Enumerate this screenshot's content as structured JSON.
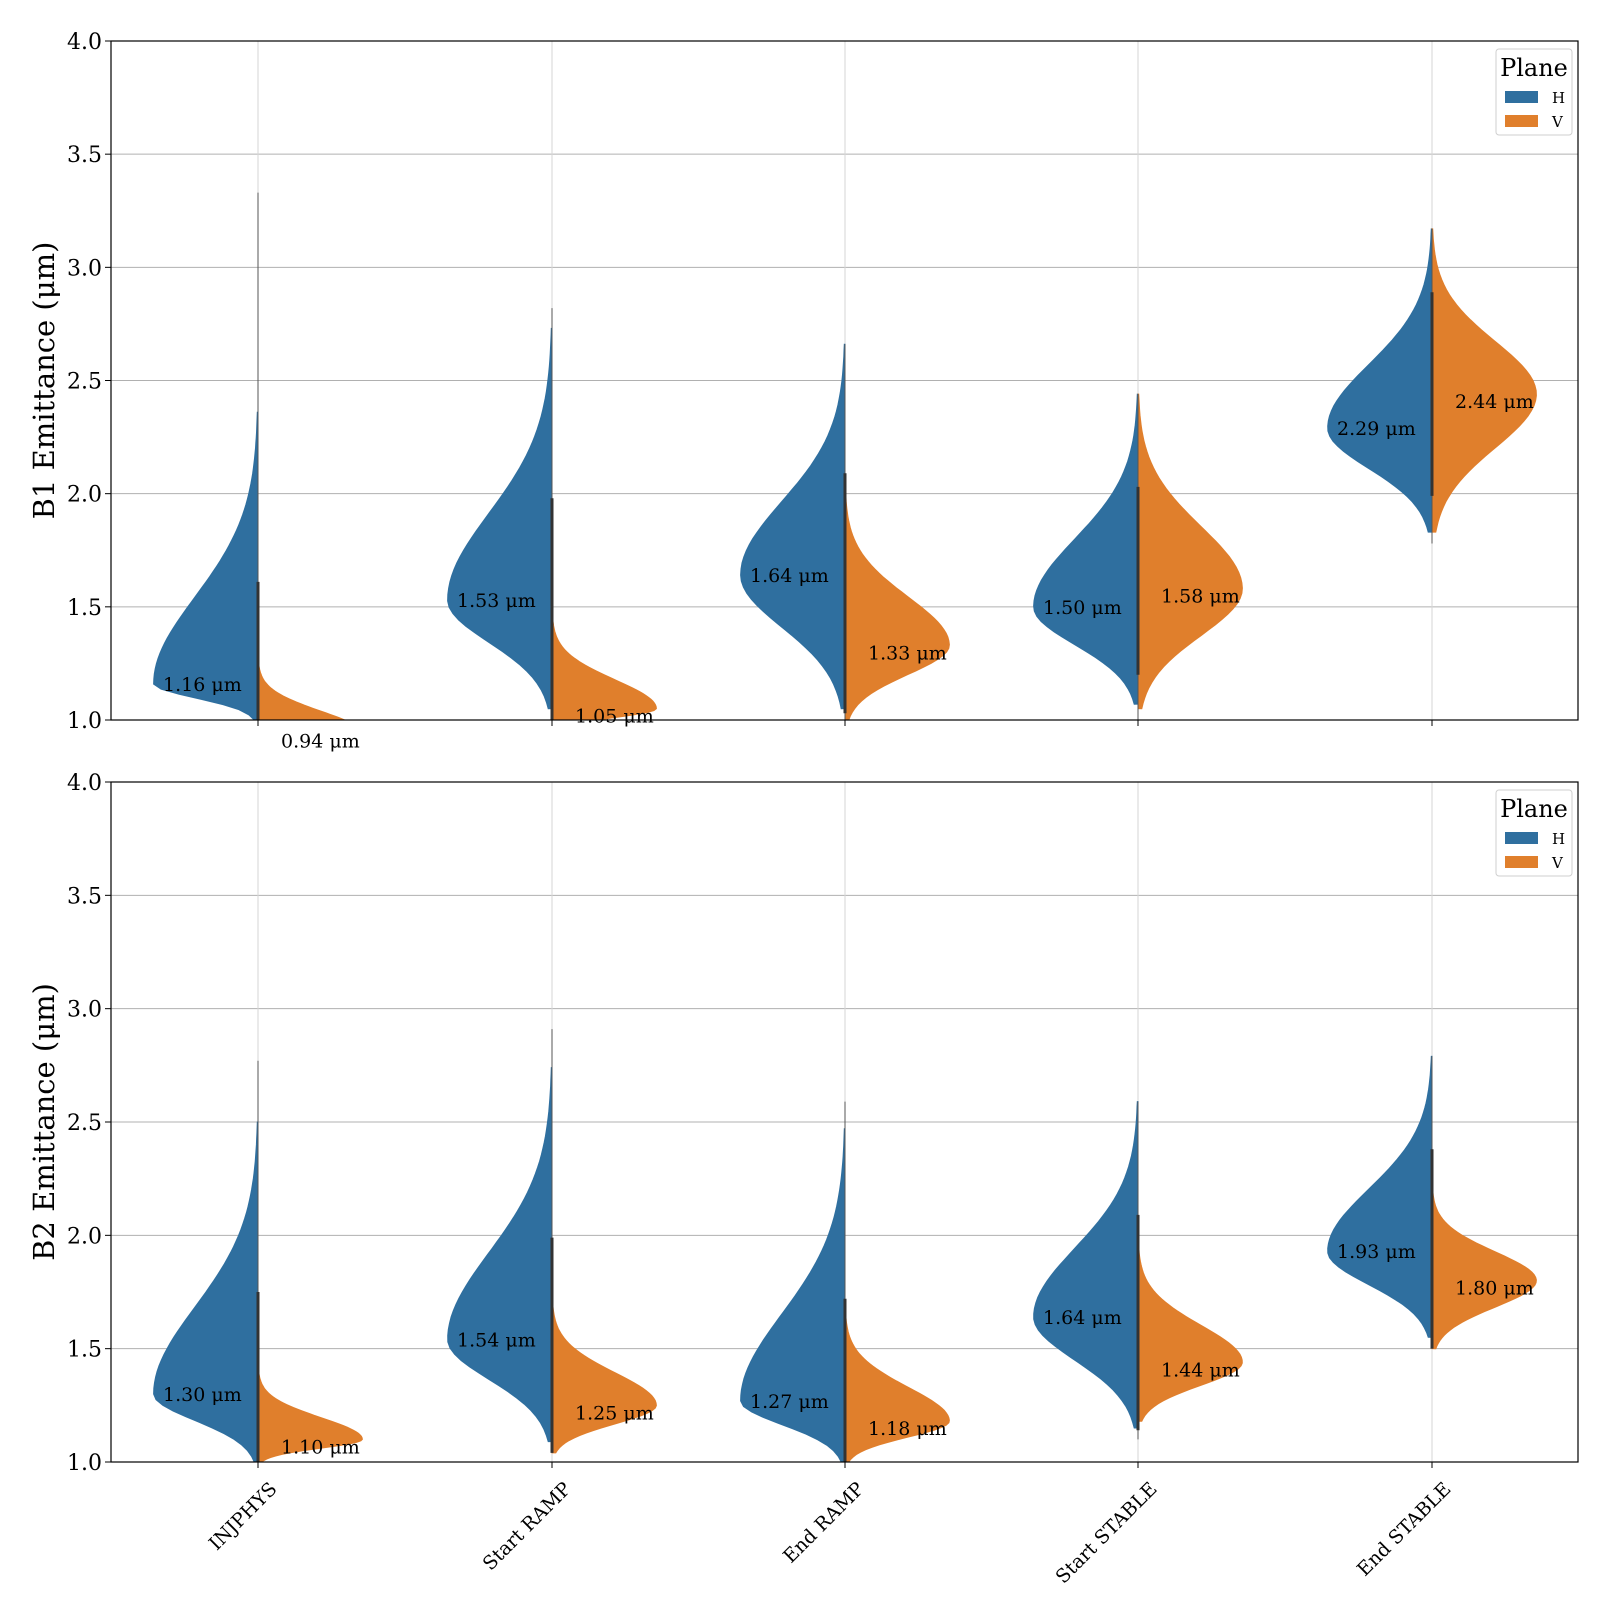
{
  "chart_data": {
    "type": "violin",
    "split": true,
    "categories": [
      "INJPHYS",
      "Start RAMP",
      "End RAMP",
      "Start STABLE",
      "End STABLE"
    ],
    "ylim": [
      1.0,
      4.0
    ],
    "yticks": [
      "1.0",
      "1.5",
      "2.0",
      "2.5",
      "3.0",
      "3.5",
      "4.0"
    ],
    "grid": true,
    "unit_suffix": "μm",
    "legend": {
      "title": "Plane",
      "placement": "top-right",
      "entries": [
        {
          "label": "H",
          "color": "#2f6f9f"
        },
        {
          "label": "V",
          "color": "#e07f2c"
        }
      ]
    },
    "panels": [
      {
        "ylabel": "B1 Emittance (μm)",
        "series": [
          {
            "name": "H",
            "color": "#2f6f9f",
            "medians": [
              1.16,
              1.53,
              1.64,
              1.5,
              2.29
            ],
            "labels": [
              "1.16 μm",
              "1.53 μm",
              "1.64 μm",
              "1.50 μm",
              "2.29 μm"
            ],
            "ranges": [
              [
                1.0,
                3.33
              ],
              [
                1.0,
                2.82
              ],
              [
                1.0,
                2.66
              ],
              [
                1.02,
                2.44
              ],
              [
                1.78,
                3.17
              ]
            ]
          },
          {
            "name": "V",
            "color": "#e07f2c",
            "medians": [
              0.94,
              1.05,
              1.33,
              1.58,
              2.44
            ],
            "labels": [
              "0.94 μm",
              "1.05 μm",
              "1.33 μm",
              "1.58 μm",
              "2.44 μm"
            ],
            "ranges": [
              [
                1.0,
                1.25
              ],
              [
                1.0,
                1.45
              ],
              [
                1.0,
                2.0
              ],
              [
                1.0,
                2.44
              ],
              [
                1.78,
                3.17
              ]
            ]
          }
        ]
      },
      {
        "ylabel": "B2 Emittance (μm)",
        "series": [
          {
            "name": "H",
            "color": "#2f6f9f",
            "medians": [
              1.3,
              1.54,
              1.27,
              1.64,
              1.93
            ],
            "labels": [
              "1.30 μm",
              "1.54 μm",
              "1.27 μm",
              "1.64 μm",
              "1.93 μm"
            ],
            "ranges": [
              [
                1.0,
                2.77
              ],
              [
                1.04,
                2.91
              ],
              [
                1.0,
                2.59
              ],
              [
                1.1,
                2.59
              ],
              [
                1.5,
                2.79
              ]
            ]
          },
          {
            "name": "V",
            "color": "#e07f2c",
            "medians": [
              1.1,
              1.25,
              1.18,
              1.44,
              1.8
            ],
            "labels": [
              "1.10 μm",
              "1.25 μm",
              "1.18 μm",
              "1.44 μm",
              "1.80 μm"
            ],
            "ranges": [
              [
                1.0,
                1.4
              ],
              [
                1.04,
                1.7
              ],
              [
                1.0,
                1.65
              ],
              [
                1.18,
                1.95
              ],
              [
                1.5,
                2.2
              ]
            ]
          }
        ]
      }
    ]
  }
}
